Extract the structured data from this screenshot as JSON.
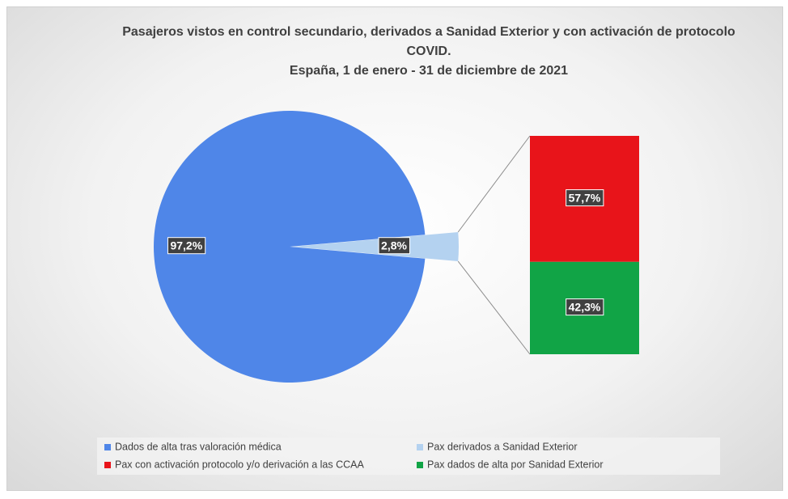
{
  "chart_data": {
    "type": "pie",
    "title": "Pasajeros vistos en control secundario, derivados a Sanidad Exterior y con activación de protocolo COVID.",
    "subtitle": "España, 1 de enero - 31 de diciembre de 2021",
    "pie": {
      "categories": [
        "Dados de alta tras valoración médica",
        "Pax derivados a Sanidad Exterior"
      ],
      "values": [
        97.2,
        2.8
      ],
      "value_labels": [
        "97,2%",
        "2,8%"
      ],
      "colors": [
        "#4f86e8",
        "#b4d2f0"
      ]
    },
    "bar": {
      "categories": [
        "Pax con activación protocolo y/o derivación a las CCAA",
        "Pax dados de alta por Sanidad Exterior"
      ],
      "values": [
        57.7,
        42.3
      ],
      "value_labels": [
        "57,7%",
        "42,3%"
      ],
      "colors": [
        "#e8141a",
        "#11a446"
      ]
    },
    "legend": "bottom"
  }
}
